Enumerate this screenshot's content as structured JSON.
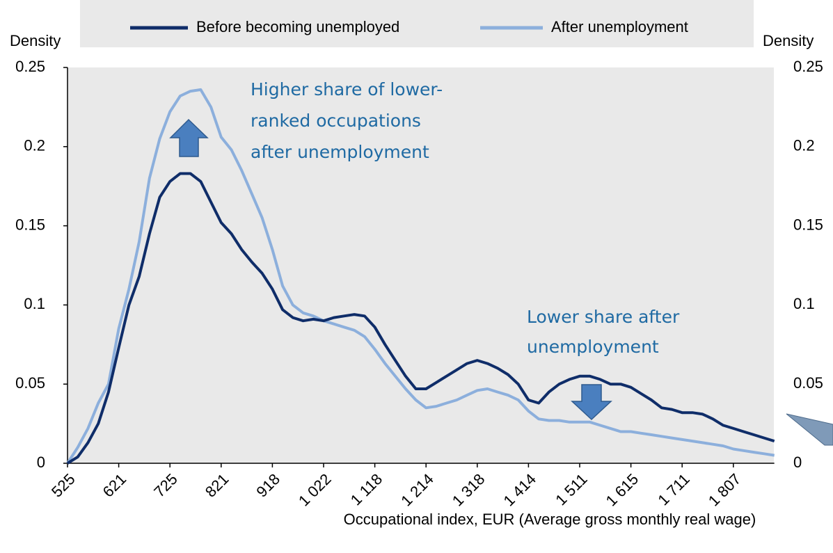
{
  "chart_data": {
    "type": "line",
    "legend": [
      "Before becoming unemployed",
      "After unemployment"
    ],
    "y_label": "Density",
    "y2_label": "Density",
    "x_label": "Occupational index, EUR (Average gross monthly real wage)",
    "annotations": [
      {
        "lines": [
          "Higher share of lower-",
          "ranked occupations",
          "after unemployment"
        ]
      },
      {
        "lines": [
          "Lower share after",
          "unemployment"
        ]
      }
    ],
    "categories": [
      "525",
      null,
      null,
      null,
      null,
      "621",
      null,
      null,
      null,
      null,
      "725",
      null,
      null,
      null,
      null,
      "821",
      null,
      null,
      null,
      null,
      "918",
      null,
      null,
      null,
      null,
      "1 022",
      null,
      null,
      null,
      null,
      "1 118",
      null,
      null,
      null,
      null,
      "1 214",
      null,
      null,
      null,
      null,
      "1 318",
      null,
      null,
      null,
      null,
      "1 414",
      null,
      null,
      null,
      null,
      "1 511",
      null,
      null,
      null,
      null,
      "1 615",
      null,
      null,
      null,
      null,
      "1 711",
      null,
      null,
      null,
      null,
      "1 807",
      null,
      null,
      null,
      null
    ],
    "series": [
      {
        "name": "Before becoming unemployed",
        "color": "#0f2d69",
        "values": [
          0,
          0.004,
          0.013,
          0.025,
          0.045,
          0.073,
          0.1,
          0.118,
          0.145,
          0.168,
          0.178,
          0.183,
          0.183,
          0.178,
          0.165,
          0.152,
          0.145,
          0.135,
          0.127,
          0.12,
          0.11,
          0.097,
          0.092,
          0.09,
          0.091,
          0.09,
          0.092,
          0.093,
          0.094,
          0.093,
          0.086,
          0.075,
          0.065,
          0.055,
          0.047,
          0.047,
          0.051,
          0.055,
          0.059,
          0.063,
          0.065,
          0.063,
          0.06,
          0.056,
          0.05,
          0.04,
          0.038,
          0.045,
          0.05,
          0.053,
          0.055,
          0.055,
          0.053,
          0.05,
          0.05,
          0.048,
          0.044,
          0.04,
          0.035,
          0.034,
          0.032,
          0.032,
          0.031,
          0.028,
          0.024,
          0.022,
          0.02,
          0.018,
          0.016,
          0.014
        ]
      },
      {
        "name": "After unemployment",
        "color": "#8cafdc",
        "values": [
          0,
          0.01,
          0.022,
          0.038,
          0.05,
          0.085,
          0.11,
          0.14,
          0.18,
          0.205,
          0.222,
          0.232,
          0.235,
          0.236,
          0.225,
          0.206,
          0.198,
          0.185,
          0.17,
          0.155,
          0.135,
          0.112,
          0.1,
          0.095,
          0.093,
          0.09,
          0.088,
          0.086,
          0.084,
          0.08,
          0.072,
          0.063,
          0.055,
          0.047,
          0.04,
          0.035,
          0.036,
          0.038,
          0.04,
          0.043,
          0.046,
          0.047,
          0.045,
          0.043,
          0.04,
          0.033,
          0.028,
          0.027,
          0.027,
          0.026,
          0.026,
          0.026,
          0.024,
          0.022,
          0.02,
          0.02,
          0.019,
          0.018,
          0.017,
          0.016,
          0.015,
          0.014,
          0.013,
          0.012,
          0.011,
          0.009,
          0.008,
          0.007,
          0.006,
          0.005
        ]
      }
    ],
    "ylim": [
      0,
      0.25
    ],
    "yticks": [
      0,
      0.05,
      0.1,
      0.15,
      0.2,
      0.25
    ],
    "y2lim": [
      0,
      0.25
    ],
    "y2ticks": [
      0,
      0.05,
      0.1,
      0.15,
      0.2,
      0.25
    ]
  }
}
